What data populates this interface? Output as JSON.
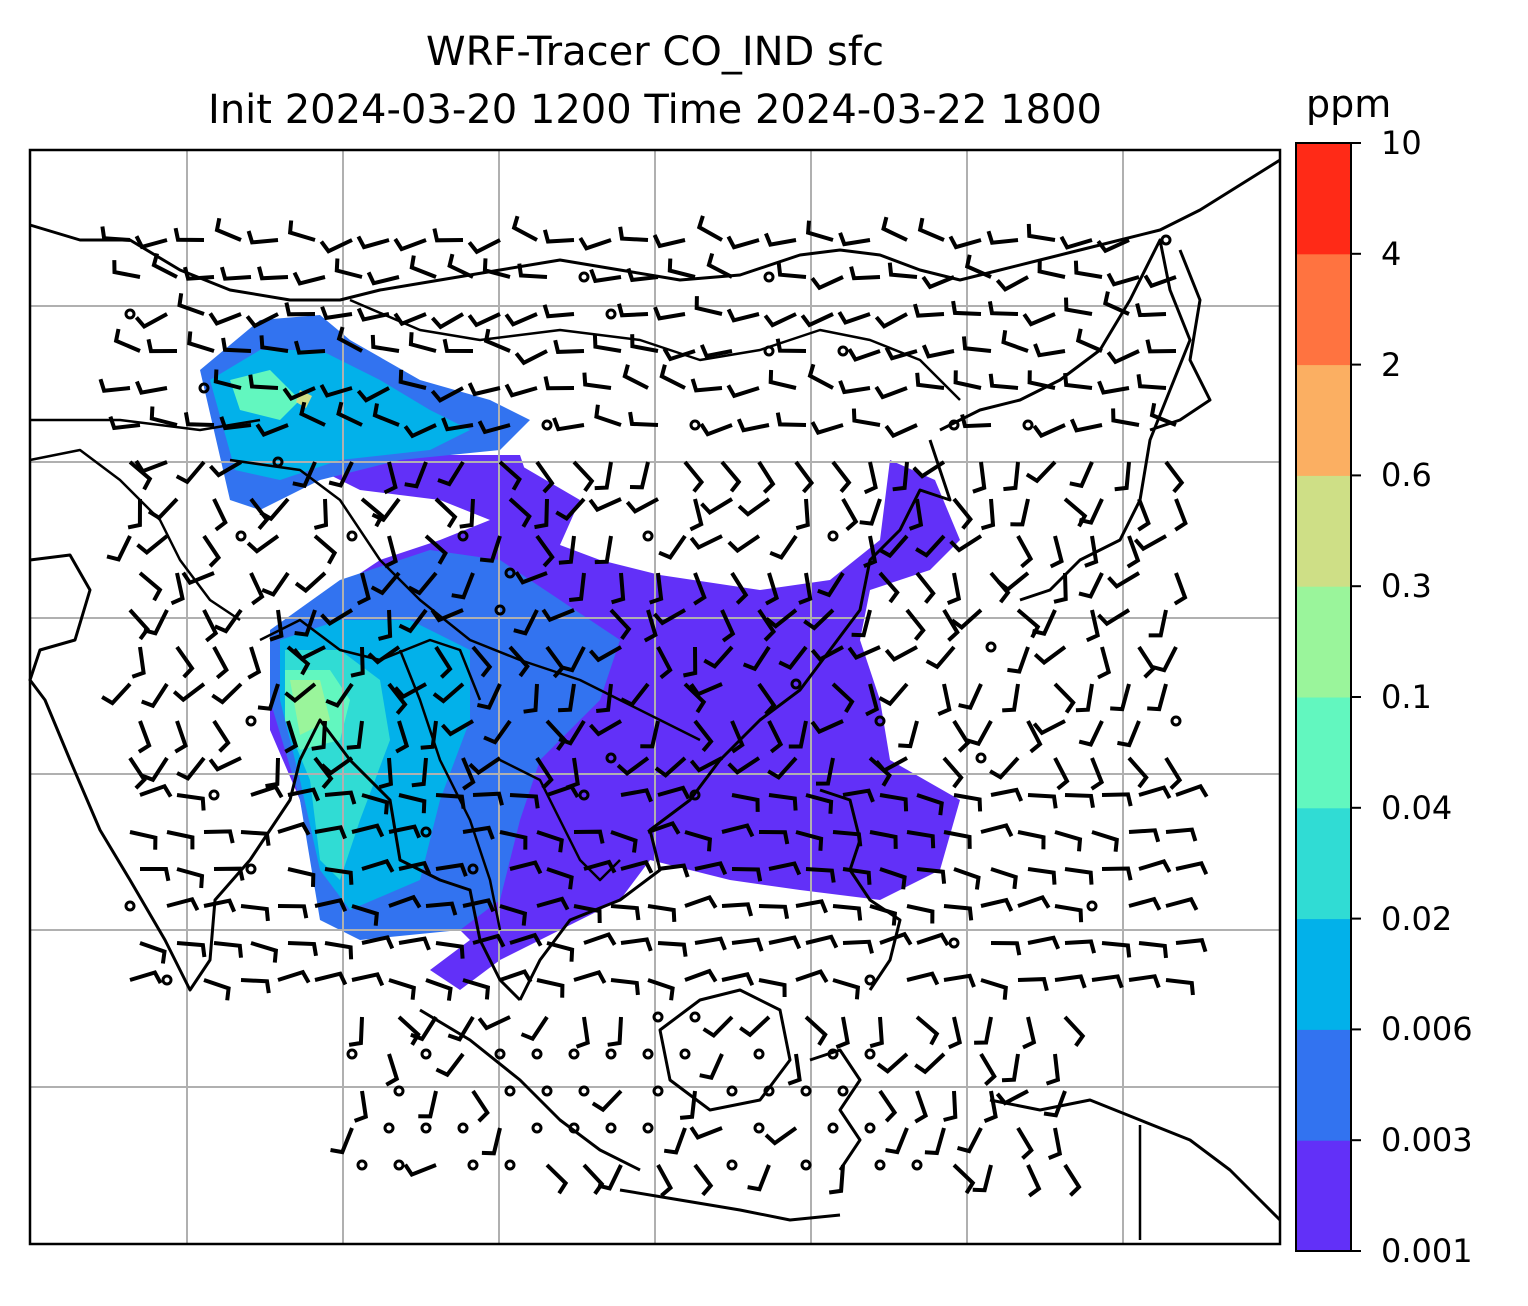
{
  "title": {
    "line1": "WRF-Tracer CO_IND sfc",
    "line2": "Init 2024-03-20 1200 Time 2024-03-22 1800"
  },
  "colorbar": {
    "unit": "ppm",
    "ticks": [
      "10",
      "4",
      "2",
      "0.6",
      "0.3",
      "0.1",
      "0.04",
      "0.02",
      "0.006",
      "0.003",
      "0.001"
    ],
    "colors": [
      "#6230f8",
      "#3273f0",
      "#02b1ea",
      "#30dcd4",
      "#62f7bf",
      "#9af59b",
      "#cedf86",
      "#fbaf62",
      "#ff7340",
      "#ff2a17"
    ]
  },
  "map": {
    "features": [
      "coastlines",
      "country-borders",
      "lat-lon-gridlines",
      "wind-barbs",
      "tracer-concentration-fill"
    ],
    "gridline_color": "#b0b0b0"
  }
}
